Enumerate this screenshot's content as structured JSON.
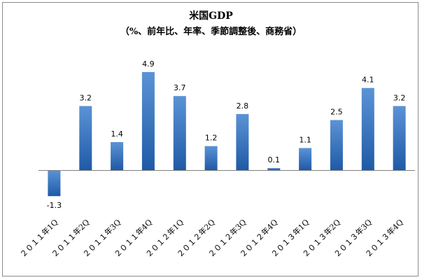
{
  "chart_data": {
    "type": "bar",
    "title": "米国GDP",
    "subtitle": "（%、前年比、年率、季節調整後、商務省）",
    "categories": [
      "２０１１年1Q",
      "２０１１年2Q",
      "２０１１年3Q",
      "２０１１年4Q",
      "２０１２年1Q",
      "２０１２年2Q",
      "２０１２年3Q",
      "２０１２年4Q",
      "２０１３年1Q",
      "２０１３年2Q",
      "２０１３年3Q",
      "２０１３年4Q"
    ],
    "values": [
      -1.3,
      3.2,
      1.4,
      4.9,
      3.7,
      1.2,
      2.8,
      0.1,
      1.1,
      2.5,
      4.1,
      3.2
    ],
    "value_labels": [
      "-1.3",
      "3.2",
      "1.4",
      "4.9",
      "3.7",
      "1.2",
      "2.8",
      "0.1",
      "1.1",
      "2.5",
      "4.1",
      "3.2"
    ],
    "ylim": [
      -1.5,
      5.0
    ],
    "grid": false,
    "legend": "none",
    "colors": {
      "bar_top": "#5b93d6",
      "bar_bottom": "#1f5aa6",
      "axis": "#808080"
    }
  }
}
